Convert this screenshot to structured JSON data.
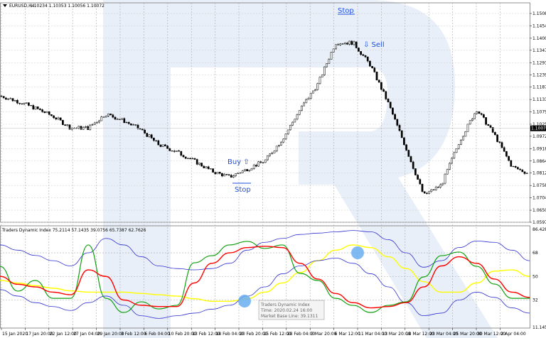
{
  "header": {
    "symbol": "EURUSD,H4",
    "ohlc": "1.10234 1.10353 1.10056 1.10072"
  },
  "indicator_header": "Traders Dynamic Index 75.2114 57.1435 39.0756 65.7387 62.7626",
  "tooltip": {
    "title": "Traders Dynamic Index",
    "time": "Time: 2020.02.24 16:00",
    "value": "Market Base Line: 39.1311"
  },
  "annotations": {
    "stop_top": "Stop",
    "sell": "⇩ Sell",
    "buy": "Buy ⇧",
    "stop_bottom": "Stop"
  },
  "colors": {
    "annotation": "#1f4fe0",
    "rsi": "#10a010",
    "signal": "#ff0000",
    "base": "#ffff00",
    "bands": "#3030d0",
    "marker": "#6aaef0",
    "watermark": "#e8eff8"
  },
  "icons": {
    "menu": "triangle-down-icon"
  },
  "chart_data": [
    {
      "type": "candlestick",
      "symbol": "EURUSD",
      "timeframe": "H4",
      "current_price": "1.10072",
      "price_axis_labels": [
        "1.15080",
        "1.14540",
        "1.14000",
        "1.13475",
        "1.12935",
        "1.12395",
        "1.11870",
        "1.11330",
        "1.10790",
        "1.10250",
        "1.09725",
        "1.09185",
        "1.08645",
        "1.08120",
        "1.07580",
        "1.07040",
        "1.06500",
        "1.05975"
      ],
      "ylim": [
        1.05975,
        1.1508
      ],
      "time_labels": [
        "15 Jan 2020",
        "17 Jan 20:00",
        "22 Jan 12:00",
        "27 Jan 04:00",
        "29 Jan 20:00",
        "3 Feb 12:00",
        "6 Feb 04:00",
        "10 Feb 20:00",
        "13 Feb 12:00",
        "18 Feb 04:00",
        "20 Feb 20:00",
        "25 Feb 12:00",
        "28 Feb 04:00",
        "3 Mar 20:00",
        "6 Mar 12:00",
        "11 Mar 04:00",
        "13 Mar 20:00",
        "18 Mar 12:00",
        "23 Mar 04:00",
        "25 Mar 20:00",
        "30 Mar 12:00",
        "2 Apr 04:00"
      ],
      "approx_close": [
        1.1149,
        1.1125,
        1.1095,
        1.106,
        1.1009,
        1.1009,
        1.107,
        1.104,
        1.1,
        1.0935,
        1.0905,
        1.0865,
        1.082,
        1.0795,
        1.083,
        1.0865,
        1.096,
        1.109,
        1.12,
        1.138,
        1.1381,
        1.128,
        1.1115,
        1.092,
        1.0715,
        1.076,
        1.0947,
        1.109,
        1.098,
        1.084,
        1.0808
      ],
      "grid": true
    },
    {
      "type": "line",
      "title": "Traders Dynamic Index",
      "axis_labels": [
        "86.4281",
        "68",
        "50",
        "32",
        "11.1457"
      ],
      "ylim": [
        11.1457,
        86.4281
      ],
      "levels": [
        68,
        50,
        32
      ],
      "series": [
        {
          "key": "rsi",
          "values": [
            57.7,
            38.8,
            46.9,
            33.3,
            33.3,
            74,
            33.3,
            22.5,
            30.6,
            25.2,
            27.9,
            60.4,
            65.8,
            74,
            76.7,
            71.3,
            74,
            52.3,
            46.9,
            33.3,
            27.9,
            22.5,
            27.9,
            30.6,
            49.6,
            65.8,
            68.6,
            57.7,
            44.2,
            33.3,
            33.3
          ]
        },
        {
          "key": "signal",
          "values": [
            50,
            44,
            42,
            38,
            36,
            55,
            50,
            32,
            28,
            27,
            27,
            45,
            60,
            68,
            72,
            73,
            72,
            60,
            48,
            37,
            30,
            26,
            27,
            30,
            42,
            58,
            65,
            60,
            48,
            38,
            34
          ]
        },
        {
          "key": "base",
          "values": [
            47,
            45,
            43,
            41,
            39,
            38,
            38,
            38,
            37,
            36,
            35,
            33,
            31,
            31,
            33,
            38,
            45,
            53,
            62,
            70,
            74,
            72,
            65,
            56,
            46,
            38,
            38,
            45,
            54,
            55,
            50
          ]
        },
        {
          "key": "upper",
          "values": [
            74,
            70,
            66,
            62,
            58,
            68,
            79,
            74,
            65,
            58,
            56,
            55,
            56,
            60,
            70,
            76,
            79,
            82,
            83,
            84,
            85,
            84,
            78,
            68,
            57,
            62,
            72,
            77,
            76,
            70,
            62
          ]
        },
        {
          "key": "lower",
          "values": [
            40,
            35,
            30,
            27,
            24,
            30,
            35,
            28,
            20,
            18,
            20,
            22,
            25,
            28,
            35,
            42,
            52,
            58,
            62,
            64,
            60,
            52,
            42,
            30,
            20,
            22,
            32,
            38,
            34,
            26,
            22
          ]
        }
      ]
    }
  ]
}
